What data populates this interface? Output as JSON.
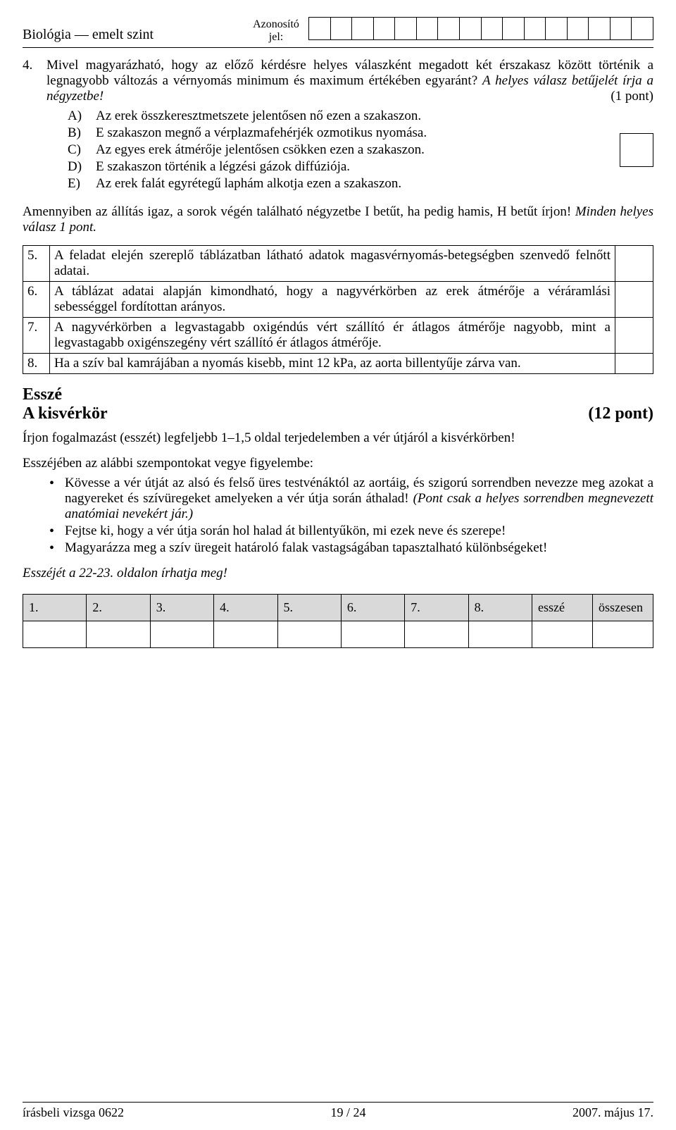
{
  "header": {
    "subject": "Biológia — emelt szint",
    "id_label_line1": "Azonosító",
    "id_label_line2": "jel:",
    "id_cells": 16
  },
  "q4": {
    "num": "4.",
    "text": "Mivel magyarázható, hogy az előző kérdésre helyes válaszként megadott két érszakasz között történik a legnagyobb változás a vérnyomás minimum és maximum értékében egyaránt?",
    "hint": "A helyes válasz betűjelét írja a négyzetbe!",
    "points": "(1 pont)",
    "options": [
      {
        "letter": "A)",
        "text": "Az erek összkeresztmetszete jelentősen nő ezen a szakaszon."
      },
      {
        "letter": "B)",
        "text": "E szakaszon megnő a vérplazmafehérjék ozmotikus nyomása."
      },
      {
        "letter": "C)",
        "text": "Az egyes erek átmérője jelentősen csökken ezen a szakaszon."
      },
      {
        "letter": "D)",
        "text": "E szakaszon történik a légzési gázok diffúziója."
      },
      {
        "letter": "E)",
        "text": "Az erek falát egyrétegű laphám alkotja ezen a szakaszon."
      }
    ]
  },
  "tf_instr": "Amennyiben az állítás igaz, a sorok végén található négyzetbe I betűt, ha pedig hamis, H betűt írjon!",
  "tf_instr_italic": " Minden helyes válasz 1 pont.",
  "tf_rows": [
    {
      "num": "5.",
      "text": "A feladat elején szereplő táblázatban látható adatok magasvérnyomás-betegségben szenvedő felnőtt adatai."
    },
    {
      "num": "6.",
      "text": "A táblázat adatai alapján kimondható, hogy a nagyvérkörben az erek átmérője a véráramlási sebességgel fordítottan arányos."
    },
    {
      "num": "7.",
      "text": "A nagyvérkörben a legvastagabb oxigéndús vért szállító ér átlagos átmérője nagyobb, mint a legvastagabb oxigénszegény vért szállító ér átlagos átmérője."
    },
    {
      "num": "8.",
      "text": "Ha a szív bal kamrájában a nyomás kisebb, mint 12 kPa, az aorta billentyűje zárva van."
    }
  ],
  "essay": {
    "title": "Esszé",
    "subtitle": "A kisvérkör",
    "points": "(12 pont)",
    "intro": "Írjon fogalmazást (esszét) legfeljebb 1–1,5 oldal terjedelemben a vér útjáról a kisvérkörben!",
    "points_intro": "Esszéjében az alábbi szempontokat vegye figyelembe:",
    "bullets": [
      {
        "text": "Kövesse a vér útját az alsó és felső üres testvénáktól az aortáig, és szigorú sorrendben nevezze meg azokat a nagyereket és szívüregeket amelyeken a vér útja során áthalad!",
        "italic": "(Pont csak a helyes sorrendben megnevezett anatómiai nevekért jár.)"
      },
      {
        "text": "Fejtse ki, hogy a vér útja során hol halad át billentyűkön, mi ezek neve és szerepe!"
      },
      {
        "text": "Magyarázza meg a szív üregeit határoló falak vastagságában tapasztalható különbségeket!"
      }
    ],
    "location": "Esszéjét a 22-23.  oldalon írhatja meg!"
  },
  "score_headers": [
    "1.",
    "2.",
    "3.",
    "4.",
    "5.",
    "6.",
    "7.",
    "8.",
    "esszé",
    "összesen"
  ],
  "footer": {
    "left": "írásbeli vizsga 0622",
    "center": "19 / 24",
    "right": "2007. május 17."
  }
}
